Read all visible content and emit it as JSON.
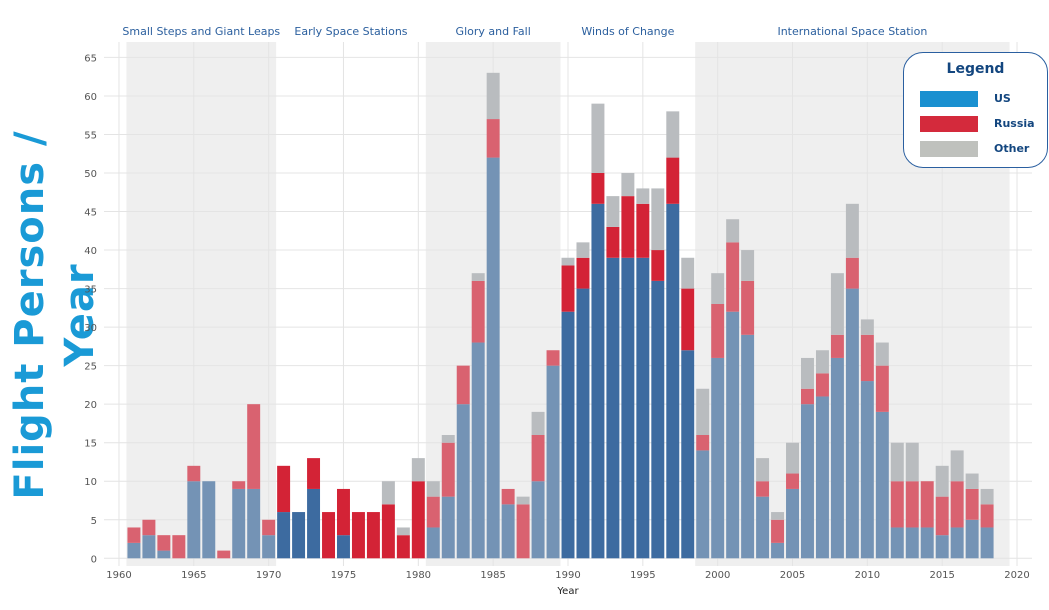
{
  "y_title": "Flight Persons / Year",
  "legend": {
    "title": "Legend",
    "items": [
      {
        "label": "US",
        "color": "#1a90d0"
      },
      {
        "label": "Russia",
        "color": "#d42a3c"
      },
      {
        "label": "Other",
        "color": "#bfc1bd"
      }
    ]
  },
  "eras": [
    {
      "label": "Small Steps and Giant Leaps",
      "start": 1960.5,
      "end": 1970.5,
      "shaded": true
    },
    {
      "label": "Early Space Stations",
      "start": 1970.5,
      "end": 1980.5,
      "shaded": false
    },
    {
      "label": "Glory and Fall",
      "start": 1980.5,
      "end": 1989.5,
      "shaded": true
    },
    {
      "label": "Winds of Change",
      "start": 1989.5,
      "end": 1998.5,
      "shaded": false
    },
    {
      "label": "International Space Station",
      "start": 1998.5,
      "end": 2019.5,
      "shaded": true
    }
  ],
  "chart_data": {
    "type": "bar",
    "stacked": true,
    "xlabel": "Year",
    "ylabel": "Flight Persons / Year",
    "xlim": [
      1959,
      2021
    ],
    "ylim": [
      0,
      65
    ],
    "x_ticks": [
      1960,
      1965,
      1970,
      1975,
      1980,
      1985,
      1990,
      1995,
      2000,
      2005,
      2010,
      2015,
      2020
    ],
    "y_ticks": [
      0,
      5,
      10,
      15,
      20,
      25,
      30,
      35,
      40,
      45,
      50,
      55,
      60,
      65
    ],
    "grid": true,
    "legend_position": "top-right",
    "categories": [
      1961,
      1962,
      1963,
      1964,
      1965,
      1966,
      1967,
      1968,
      1969,
      1970,
      1971,
      1972,
      1973,
      1974,
      1975,
      1976,
      1977,
      1978,
      1979,
      1980,
      1981,
      1982,
      1983,
      1984,
      1985,
      1986,
      1987,
      1988,
      1989,
      1990,
      1991,
      1992,
      1993,
      1994,
      1995,
      1996,
      1997,
      1998,
      1999,
      2000,
      2001,
      2002,
      2003,
      2004,
      2005,
      2006,
      2007,
      2008,
      2009,
      2010,
      2011,
      2012,
      2013,
      2014,
      2015,
      2016,
      2017,
      2018
    ],
    "series": [
      {
        "name": "US",
        "values": [
          2,
          3,
          1,
          0,
          10,
          10,
          0,
          9,
          9,
          3,
          6,
          6,
          9,
          0,
          3,
          0,
          0,
          0,
          0,
          0,
          4,
          8,
          20,
          28,
          52,
          7,
          0,
          10,
          25,
          32,
          35,
          46,
          39,
          39,
          39,
          36,
          46,
          27,
          14,
          26,
          32,
          29,
          8,
          2,
          9,
          20,
          21,
          26,
          35,
          23,
          19,
          4,
          4,
          4,
          3,
          4,
          5,
          4
        ]
      },
      {
        "name": "Russia",
        "values": [
          2,
          2,
          2,
          3,
          2,
          0,
          1,
          1,
          11,
          2,
          6,
          0,
          4,
          6,
          6,
          6,
          6,
          7,
          3,
          10,
          4,
          7,
          5,
          8,
          5,
          2,
          7,
          6,
          2,
          6,
          4,
          4,
          4,
          8,
          7,
          4,
          6,
          8,
          2,
          7,
          9,
          7,
          2,
          3,
          2,
          2,
          3,
          3,
          4,
          6,
          6,
          6,
          6,
          6,
          5,
          6,
          4,
          3
        ]
      },
      {
        "name": "Other",
        "values": [
          0,
          0,
          0,
          0,
          0,
          0,
          0,
          0,
          0,
          0,
          0,
          0,
          0,
          0,
          0,
          0,
          0,
          3,
          1,
          3,
          2,
          1,
          0,
          1,
          6,
          0,
          1,
          3,
          0,
          1,
          2,
          9,
          4,
          3,
          2,
          8,
          6,
          4,
          6,
          4,
          3,
          4,
          3,
          1,
          4,
          4,
          3,
          8,
          7,
          2,
          3,
          5,
          5,
          0,
          4,
          4,
          2,
          2
        ]
      }
    ]
  }
}
